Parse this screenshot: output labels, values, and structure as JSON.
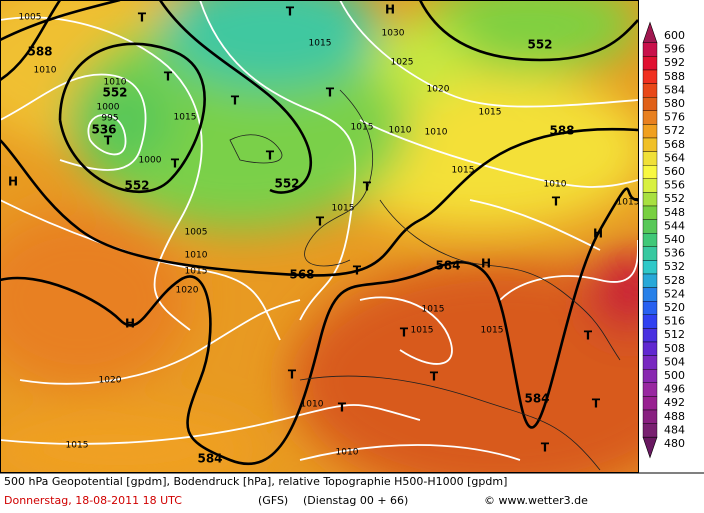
{
  "map": {
    "labels": [
      "1005",
      588,
      1010,
      "T",
      "T",
      "H",
      552,
      1015,
      1030,
      1025,
      "T",
      1010,
      552,
      1000,
      995,
      536,
      "T",
      "T",
      "T",
      1015,
      1020,
      1015,
      1015,
      1010,
      1010,
      588,
      1000,
      "T",
      "T",
      552,
      552,
      "H",
      "T",
      1015,
      1010,
      "T",
      1015,
      1015,
      "T",
      1005,
      "H",
      1010,
      1015,
      568,
      "T",
      584,
      "H",
      1020,
      "H",
      1015,
      1015,
      "T",
      1015,
      "T",
      1020,
      "T",
      "T",
      1010,
      "T",
      584,
      "T",
      1015,
      1010,
      "T",
      584
    ]
  },
  "colorbar": {
    "labels": [
      600,
      596,
      592,
      588,
      584,
      580,
      576,
      572,
      568,
      564,
      560,
      556,
      552,
      548,
      544,
      540,
      536,
      532,
      528,
      524,
      520,
      516,
      512,
      508,
      504,
      500,
      496,
      492,
      488,
      484,
      480
    ],
    "colors": [
      "#a01850",
      "#c8104a",
      "#e01030",
      "#f03020",
      "#e84818",
      "#e06018",
      "#e88020",
      "#f0a020",
      "#f0c028",
      "#f0e038",
      "#f8f840",
      "#d8f040",
      "#a8e040",
      "#78d040",
      "#58c858",
      "#40c878",
      "#38c8a0",
      "#30c8c8",
      "#28a8d8",
      "#2880e8",
      "#2860f0",
      "#3040f0",
      "#4830e0",
      "#6028d0",
      "#7828c0",
      "#8828b0",
      "#9828a0",
      "#982090",
      "#882080",
      "#782070",
      "#681860"
    ]
  },
  "footer": {
    "line1": "500 hPa Geopotential [gpdm], Bodendruck [hPa], relative Topographie H500-H1000 [gpdm]",
    "date": "Donnerstag, 18-08-2011   18 UTC",
    "model": "(GFS)",
    "run": "(Dienstag 00 + 66)",
    "credit": "© www.wetter3.de"
  }
}
